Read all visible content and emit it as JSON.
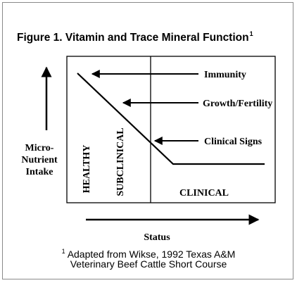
{
  "figure": {
    "title": "Figure 1. Vitamin and Trace Mineral Function",
    "title_footnote_mark": "1"
  },
  "y_axis": {
    "label_line1": "Micro-",
    "label_line2": "Nutrient",
    "label_line3": "Intake"
  },
  "x_axis": {
    "label": "Status"
  },
  "zones": {
    "healthy": "HEALTHY",
    "subclinical": "SUBCLINICAL",
    "clinical": "CLINICAL"
  },
  "annotations": {
    "immunity": "Immunity",
    "growth": "Growth/Fertility",
    "clinical_signs": "Clinical Signs"
  },
  "caption": {
    "footnote_mark": "1",
    "line1": "Adapted from Wikse, 1992 Texas A&M",
    "line2": "Veterinary Beef Cattle Short Course"
  }
}
